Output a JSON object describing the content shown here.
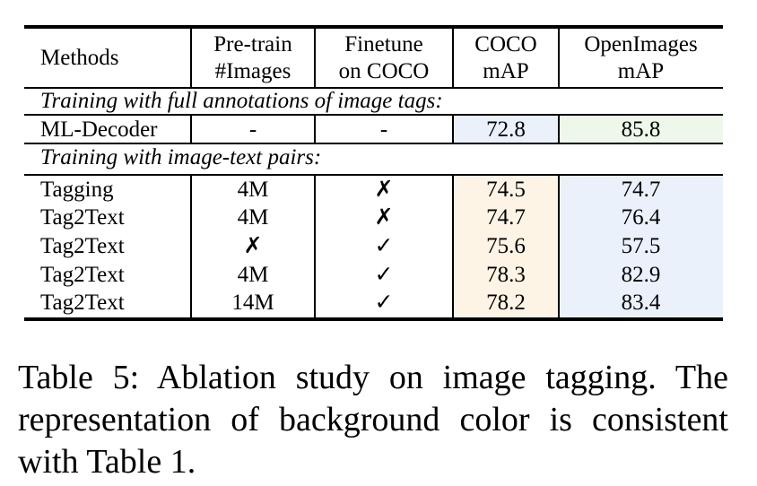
{
  "table": {
    "headers": {
      "methods": "Methods",
      "pretrain_line1": "Pre-train",
      "pretrain_line2": "#Images",
      "finetune_line1": "Finetune",
      "finetune_line2": "on COCO",
      "coco_line1": "COCO",
      "coco_line2": "mAP",
      "openimages_line1": "OpenImages",
      "openimages_line2": "mAP"
    },
    "section1": "Training with full annotations of image tags:",
    "section1_rows": [
      {
        "method": "ML-Decoder",
        "pretrain": "-",
        "finetune": "-",
        "coco": "72.8",
        "openimages": "85.8"
      }
    ],
    "section2": "Training with image-text pairs:",
    "section2_rows": [
      {
        "method": "Tagging",
        "pretrain": "4M",
        "finetune": "✗",
        "coco": "74.5",
        "openimages": "74.7"
      },
      {
        "method": "Tag2Text",
        "pretrain": "4M",
        "finetune": "✗",
        "coco": "74.7",
        "openimages": "76.4"
      },
      {
        "method": "Tag2Text",
        "pretrain": "✗",
        "finetune": "✓",
        "coco": "75.6",
        "openimages": "57.5"
      },
      {
        "method": "Tag2Text",
        "pretrain": "4M",
        "finetune": "✓",
        "coco": "78.3",
        "openimages": "82.9"
      },
      {
        "method": "Tag2Text",
        "pretrain": "14M",
        "finetune": "✓",
        "coco": "78.2",
        "openimages": "83.4"
      }
    ],
    "colors": {
      "blue": "#eaf1fb",
      "green": "#edf8ea",
      "orange": "#fdf4e6"
    }
  },
  "caption": "Table 5: Ablation study on image tagging. The representation of background color is consistent with Table 1."
}
